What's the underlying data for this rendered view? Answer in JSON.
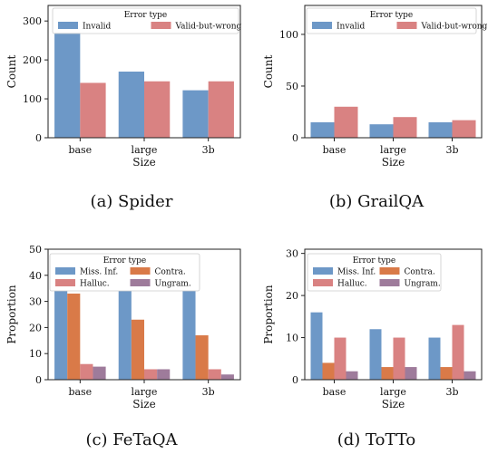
{
  "chart_data": [
    {
      "type": "bar",
      "caption": "(a)  Spider",
      "xlabel": "Size",
      "ylabel": "Count",
      "categories": [
        "base",
        "large",
        "3b"
      ],
      "ylim": [
        0,
        340
      ],
      "yticks": [
        0,
        100,
        200,
        300
      ],
      "legend": {
        "title": "Error type",
        "columns": 2,
        "placement": "top"
      },
      "series": [
        {
          "name": "Invalid",
          "color": "#6d98c7",
          "values": [
            270,
            170,
            122
          ]
        },
        {
          "name": "Valid-but-wrong",
          "color": "#d98282",
          "values": [
            141,
            145,
            145
          ]
        }
      ]
    },
    {
      "type": "bar",
      "caption": "(b)  GrailQA",
      "xlabel": "Size",
      "ylabel": "Count",
      "categories": [
        "base",
        "large",
        "3b"
      ],
      "ylim": [
        0,
        128
      ],
      "yticks": [
        0,
        50,
        100
      ],
      "legend": {
        "title": "Error type",
        "columns": 2,
        "placement": "top"
      },
      "series": [
        {
          "name": "Invalid",
          "color": "#6d98c7",
          "values": [
            15,
            13,
            15
          ]
        },
        {
          "name": "Valid-but-wrong",
          "color": "#d98282",
          "values": [
            30,
            20,
            17
          ]
        }
      ]
    },
    {
      "type": "bar",
      "caption": "(c)  FeTaQA",
      "xlabel": "Size",
      "ylabel": "Proportion",
      "categories": [
        "base",
        "large",
        "3b"
      ],
      "ylim": [
        0,
        50
      ],
      "yticks": [
        0,
        10,
        20,
        30,
        40,
        50
      ],
      "legend": {
        "title": "Error type",
        "columns": 2,
        "placement": "top"
      },
      "series": [
        {
          "name": "Miss. Inf.",
          "color": "#6d98c7",
          "values": [
            34,
            34,
            34
          ]
        },
        {
          "name": "Contra.",
          "color": "#d97a48",
          "values": [
            33,
            23,
            17
          ]
        },
        {
          "name": "Halluc.",
          "color": "#d98282",
          "values": [
            6,
            4,
            4
          ]
        },
        {
          "name": "Ungram.",
          "color": "#9e7b9b",
          "values": [
            5,
            4,
            2
          ]
        }
      ]
    },
    {
      "type": "bar",
      "caption": "(d)  ToTTo",
      "xlabel": "Size",
      "ylabel": "Proportion",
      "categories": [
        "base",
        "large",
        "3b"
      ],
      "ylim": [
        0,
        31
      ],
      "yticks": [
        0,
        10,
        20,
        30
      ],
      "legend": {
        "title": "Error type",
        "columns": 2,
        "placement": "top"
      },
      "series": [
        {
          "name": "Miss. Inf.",
          "color": "#6d98c7",
          "values": [
            16,
            12,
            10
          ]
        },
        {
          "name": "Contra.",
          "color": "#d97a48",
          "values": [
            4,
            3,
            3
          ]
        },
        {
          "name": "Halluc.",
          "color": "#d98282",
          "values": [
            10,
            10,
            13
          ]
        },
        {
          "name": "Ungram.",
          "color": "#9e7b9b",
          "values": [
            2,
            3,
            2
          ]
        }
      ]
    }
  ]
}
